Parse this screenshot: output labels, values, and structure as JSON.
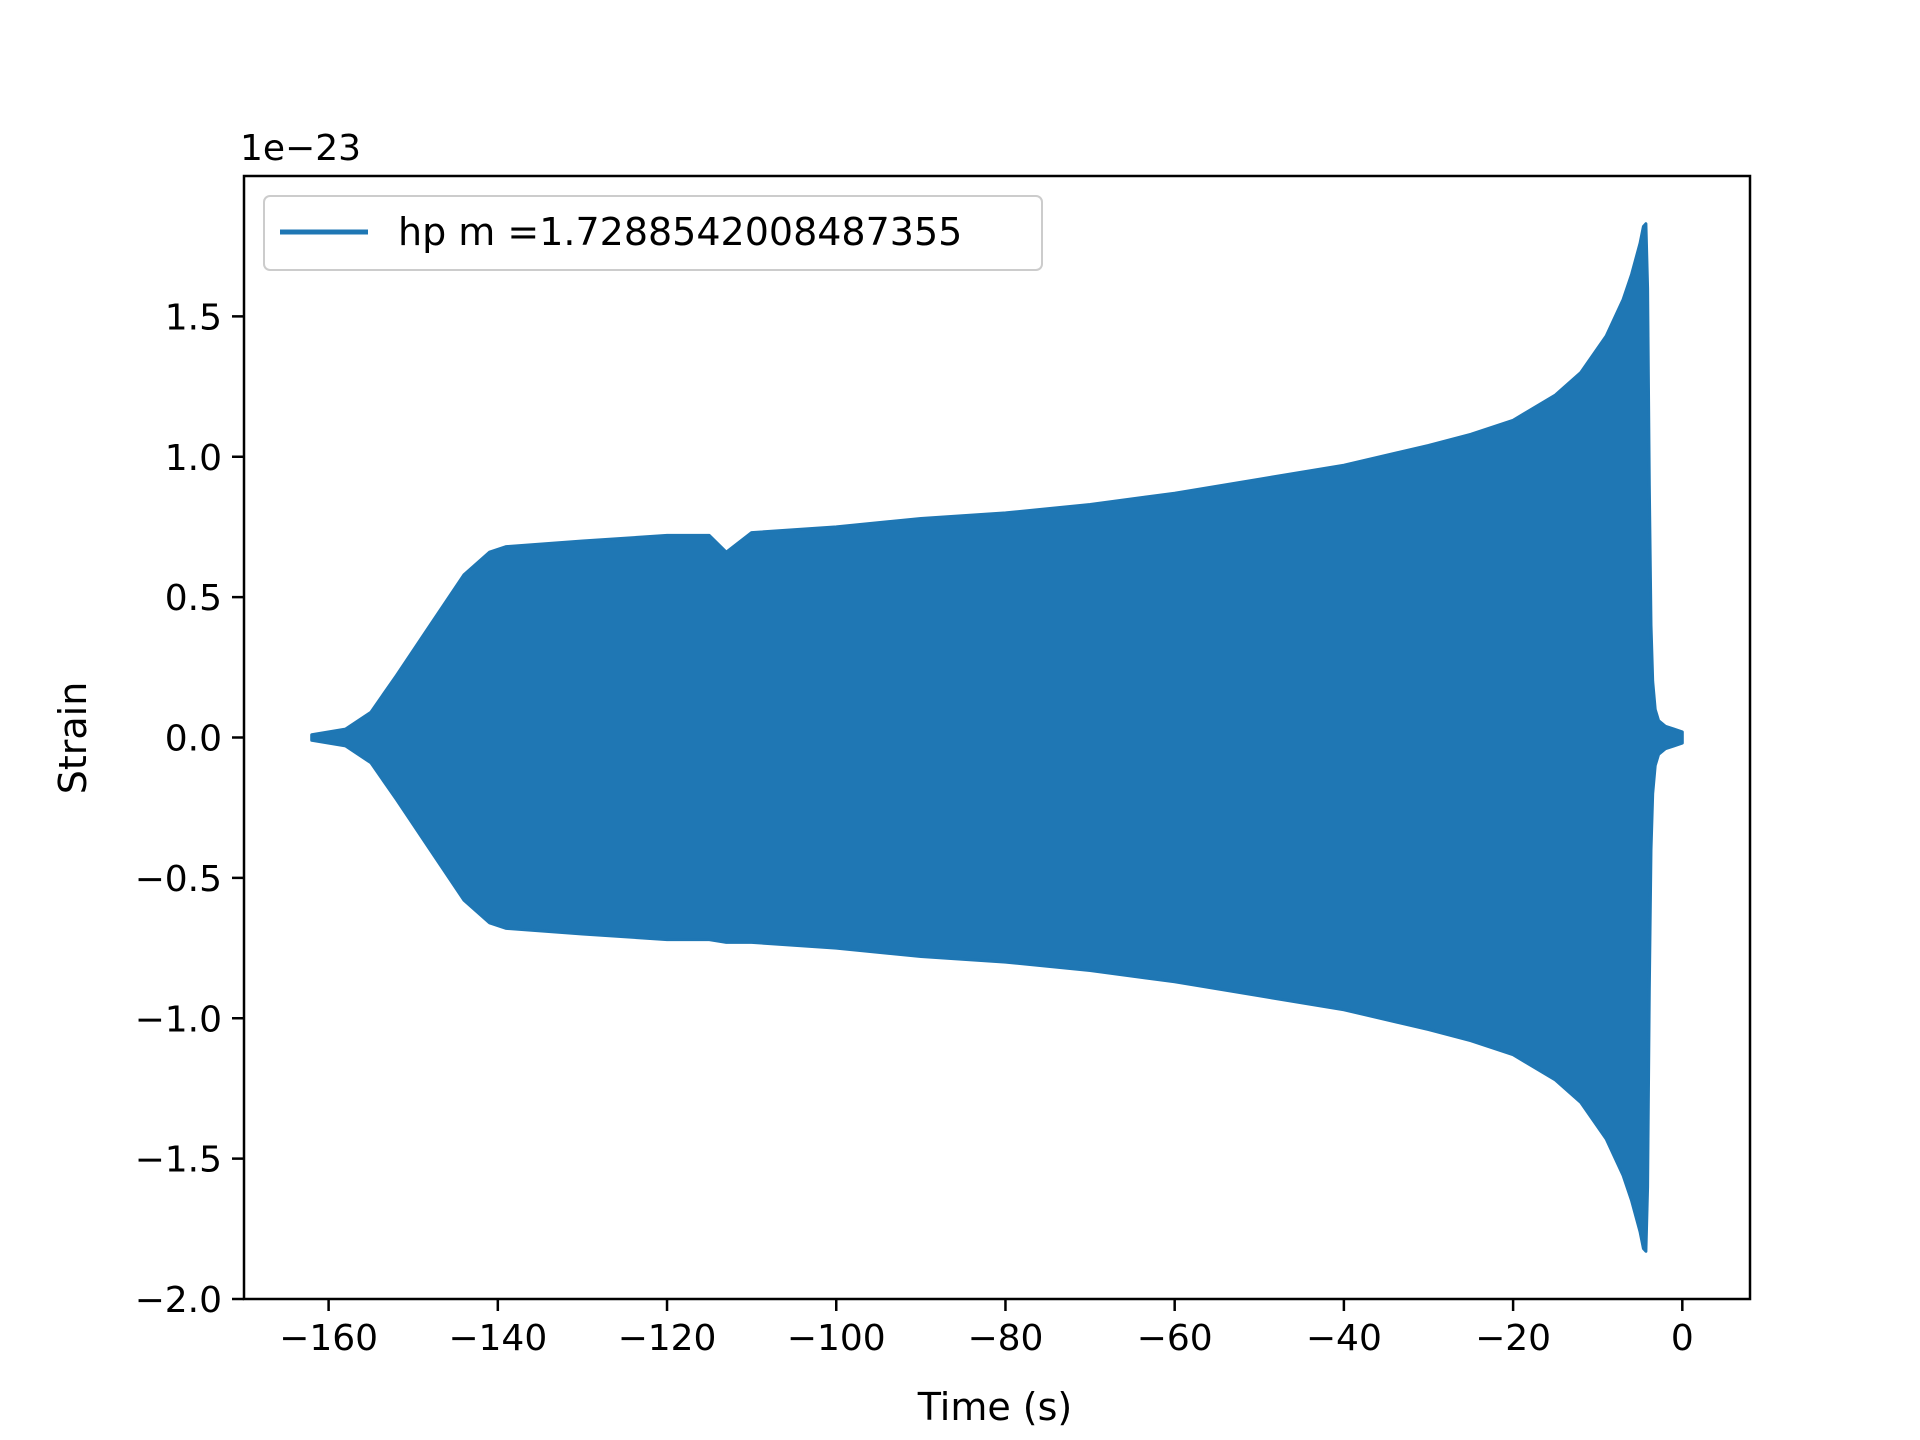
{
  "chart_data": {
    "type": "line",
    "title": "",
    "xlabel": "Time (s)",
    "ylabel": "Strain",
    "y_offset_text": "1e−23",
    "xlim": [
      -170,
      8
    ],
    "ylim": [
      -2.0,
      2.0
    ],
    "xticks": [
      {
        "value": -160,
        "label": "−160"
      },
      {
        "value": -140,
        "label": "−140"
      },
      {
        "value": -120,
        "label": "−120"
      },
      {
        "value": -100,
        "label": "−100"
      },
      {
        "value": -80,
        "label": "−80"
      },
      {
        "value": -60,
        "label": "−60"
      },
      {
        "value": -40,
        "label": "−40"
      },
      {
        "value": -20,
        "label": "−20"
      },
      {
        "value": 0,
        "label": "0"
      }
    ],
    "yticks": [
      {
        "value": -2.0,
        "label": "−2.0"
      },
      {
        "value": -1.5,
        "label": "−1.5"
      },
      {
        "value": -1.0,
        "label": "−1.0"
      },
      {
        "value": -0.5,
        "label": "−0.5"
      },
      {
        "value": 0.0,
        "label": "0.0"
      },
      {
        "value": 0.5,
        "label": "0.5"
      },
      {
        "value": 1.0,
        "label": "1.0"
      },
      {
        "value": 1.5,
        "label": "1.5"
      }
    ],
    "grid": false,
    "legend_position": "top-left",
    "series": [
      {
        "name": "hp m =1.7288542008487355",
        "color": "#1f77b4",
        "envelope": {
          "x": [
            -162,
            -158,
            -155,
            -152,
            -148,
            -144,
            -141,
            -139,
            -130,
            -120,
            -115,
            -113,
            -110,
            -100,
            -90,
            -80,
            -70,
            -60,
            -50,
            -40,
            -30,
            -25,
            -20,
            -15,
            -12,
            -9,
            -7,
            -6,
            -5,
            -4.6,
            -4.3,
            -4.1,
            -3.9,
            -3.7,
            -3.5,
            -3.2,
            -2.8,
            -2,
            -1,
            0
          ],
          "upper": [
            0.01,
            0.03,
            0.09,
            0.22,
            0.4,
            0.58,
            0.66,
            0.68,
            0.7,
            0.72,
            0.72,
            0.66,
            0.73,
            0.75,
            0.78,
            0.8,
            0.83,
            0.87,
            0.92,
            0.97,
            1.04,
            1.08,
            1.13,
            1.22,
            1.3,
            1.43,
            1.56,
            1.65,
            1.76,
            1.82,
            1.83,
            1.6,
            0.9,
            0.4,
            0.2,
            0.1,
            0.06,
            0.04,
            0.03,
            0.02
          ],
          "lower": [
            -0.01,
            -0.03,
            -0.09,
            -0.22,
            -0.4,
            -0.58,
            -0.66,
            -0.68,
            -0.7,
            -0.72,
            -0.72,
            -0.73,
            -0.73,
            -0.75,
            -0.78,
            -0.8,
            -0.83,
            -0.87,
            -0.92,
            -0.97,
            -1.04,
            -1.08,
            -1.13,
            -1.22,
            -1.3,
            -1.43,
            -1.56,
            -1.65,
            -1.76,
            -1.82,
            -1.83,
            -1.6,
            -0.9,
            -0.4,
            -0.2,
            -0.1,
            -0.06,
            -0.04,
            -0.03,
            -0.02
          ]
        }
      }
    ]
  }
}
